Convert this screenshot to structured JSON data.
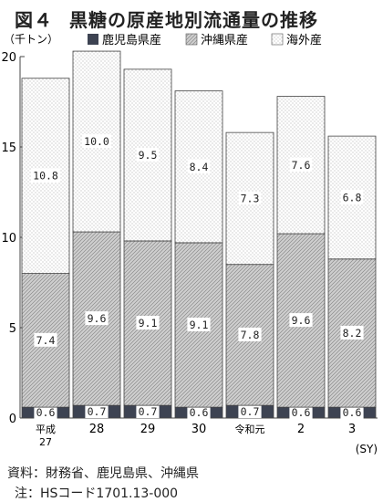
{
  "figure": {
    "number": "図４",
    "title": "黒糖の原産地別流通量の推移"
  },
  "chart_data": {
    "type": "bar",
    "stacked": true,
    "unit_label": "（千トン）",
    "xlabel": "(SY)",
    "categories": [
      "平成\n27",
      "28",
      "29",
      "30",
      "令和元",
      "2",
      "3"
    ],
    "series": [
      {
        "name": "鹿児島県産",
        "values": [
          0.6,
          0.7,
          0.7,
          0.6,
          0.7,
          0.6,
          0.6
        ],
        "labels": [
          "0.6",
          "0.7",
          "0.7",
          "0.6",
          "0.7",
          "0.6",
          "0.6"
        ],
        "color": "#3d4352"
      },
      {
        "name": "沖縄県産",
        "values": [
          7.4,
          9.6,
          9.1,
          9.1,
          7.8,
          9.6,
          8.2
        ],
        "labels": [
          "7.4",
          "9.6",
          "9.1",
          "9.1",
          "7.8",
          "9.6",
          "8.2"
        ],
        "color": "#c8c8c8"
      },
      {
        "name": "海外産",
        "values": [
          10.8,
          10.0,
          9.5,
          8.4,
          7.3,
          7.6,
          6.8
        ],
        "labels": [
          "10.8",
          "10.0",
          "9.5",
          "8.4",
          "7.3",
          "7.6",
          "6.8"
        ],
        "color": "#f4f4f4"
      }
    ],
    "ylim": [
      0,
      20
    ],
    "yticks": [
      0,
      5,
      10,
      15,
      20
    ],
    "grid": false,
    "legend_position": "top"
  },
  "footer": {
    "source": "資料：財務省、鹿児島県、沖縄県",
    "note": "注：HSコード1701.13-000"
  }
}
